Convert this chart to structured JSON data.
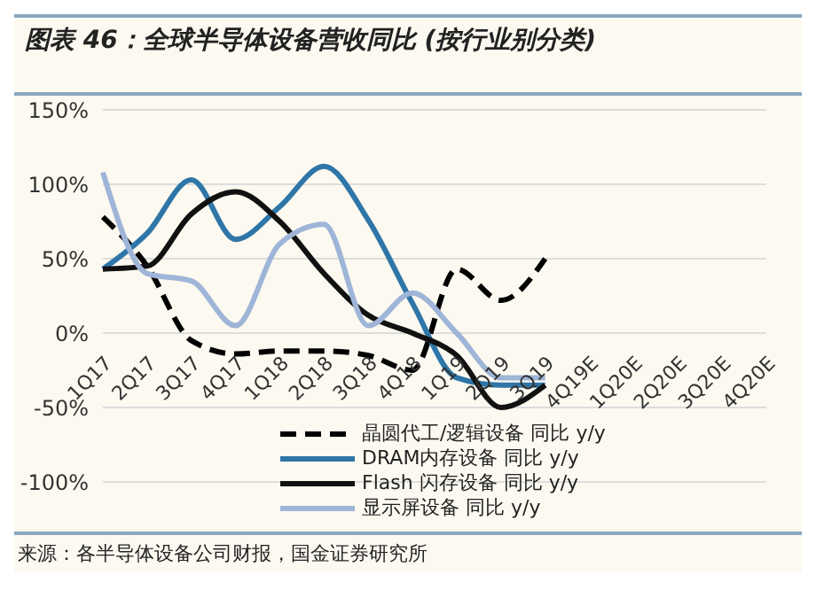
{
  "chart_data": {
    "type": "line",
    "title": "图表 46：全球半导体设备营收同比 (按行业别分类)",
    "categories": [
      "1Q17",
      "2Q17",
      "3Q17",
      "4Q17",
      "1Q18",
      "2Q18",
      "3Q18",
      "4Q18",
      "1Q19",
      "2Q19",
      "3Q19",
      "4Q19E",
      "1Q20E",
      "2Q20E",
      "3Q20E",
      "4Q20E"
    ],
    "series": [
      {
        "name": "晶圆代工/逻辑设备 同比 y/y",
        "color": "#000000",
        "line_style": "dashed",
        "values": [
          78,
          45,
          -5,
          -14,
          -12,
          -12,
          -15,
          -25,
          43,
          22,
          50,
          null,
          null,
          null,
          null,
          null
        ]
      },
      {
        "name": "DRAM内存设备 同比 y/y",
        "color": "#2f76a8",
        "values": [
          43,
          67,
          103,
          63,
          85,
          112,
          76,
          20,
          -30,
          -35,
          -35,
          null,
          null,
          null,
          null,
          null
        ]
      },
      {
        "name": "Flash 闪存设备 同比 y/y",
        "color": "#111111",
        "values": [
          43,
          45,
          80,
          95,
          75,
          40,
          12,
          0,
          -15,
          -50,
          -35,
          null,
          null,
          null,
          null,
          null
        ]
      },
      {
        "name": "显示屏设备 同比 y/y",
        "color": "#9fb5d8",
        "values": [
          108,
          40,
          35,
          5,
          60,
          73,
          5,
          27,
          0,
          -30,
          -30,
          null,
          null,
          null,
          null,
          null
        ]
      }
    ],
    "ylim": [
      -100,
      150
    ],
    "yticks": [
      {
        "value": -100,
        "label": "-100%"
      },
      {
        "value": -50,
        "label": "-50%"
      },
      {
        "value": 0,
        "label": "0%"
      },
      {
        "value": 50,
        "label": "50%"
      },
      {
        "value": 100,
        "label": "100%"
      },
      {
        "value": 150,
        "label": "150%"
      }
    ],
    "grid": "y",
    "legend": "bottom",
    "line_style": "solid",
    "marker": "none",
    "annotations": [
      "来源：各半导体设备公司财报，国金证券研究所"
    ]
  }
}
